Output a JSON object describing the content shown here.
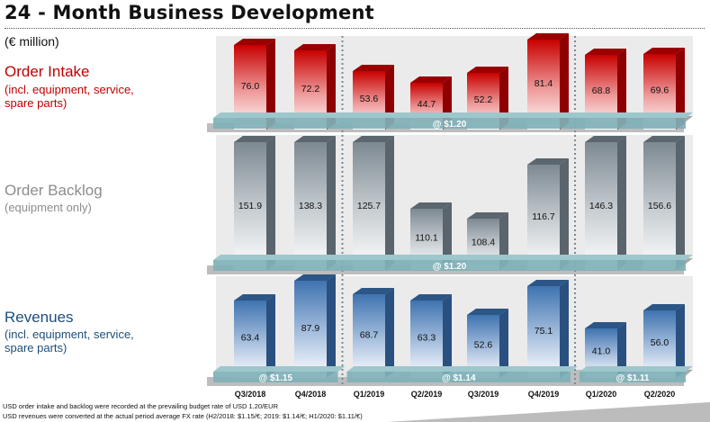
{
  "page": {
    "title": "24 - Month Business Development",
    "unit": "(€ million)",
    "footnote_1": "USD order intake and backlog were recorded at the prevailing budget rate of USD 1.20/EUR",
    "footnote_2": "USD revenues were converted at the actual period average FX rate (H2/2018: $1.15/€; 2019: $1.14/€; H1/2020: $1.11/€)"
  },
  "panels": {
    "order_intake": {
      "heading": "Order Intake",
      "subheading": "(incl. equipment, service, spare parts)",
      "color": "#c00000"
    },
    "order_backlog": {
      "heading": "Order Backlog",
      "subheading": "(equipment only)",
      "color": "#8c8c8c"
    },
    "revenues": {
      "heading": "Revenues",
      "subheading": "(incl. equipment, service, spare parts)",
      "color": "#1f4e79"
    }
  },
  "chart_data": {
    "type": "bar",
    "categories": [
      "Q3/2018",
      "Q4/2018",
      "Q1/2019",
      "Q2/2019",
      "Q3/2019",
      "Q4/2019",
      "Q1/2020",
      "Q2/2020"
    ],
    "series": [
      {
        "name": "Order Intake",
        "values": [
          76.0,
          72.2,
          53.6,
          44.7,
          52.2,
          81.4,
          68.8,
          69.6
        ],
        "labels": [
          "76.0",
          "72.2",
          "53.6",
          "44.7",
          "52.2",
          "81.4",
          "68.8",
          "69.6"
        ],
        "color": "#d40000",
        "fx_bands": [
          {
            "label": "@ $1.20",
            "from": 0,
            "to": 7
          }
        ]
      },
      {
        "name": "Order Backlog",
        "values": [
          151.9,
          138.3,
          125.7,
          110.1,
          108.4,
          116.7,
          146.3,
          156.6
        ],
        "labels": [
          "151.9",
          "138.3",
          "125.7",
          "110.1",
          "108.4",
          "116.7",
          "146.3",
          "156.6"
        ],
        "color": "#7f8c96",
        "fx_bands": [
          {
            "label": "@ $1.20",
            "from": 0,
            "to": 7
          }
        ]
      },
      {
        "name": "Revenues",
        "values": [
          63.4,
          87.9,
          68.7,
          63.3,
          52.6,
          75.1,
          41.0,
          56.0
        ],
        "labels": [
          "63.4",
          "87.9",
          "68.7",
          "63.3",
          "52.6",
          "75.1",
          "41.0",
          "56.0"
        ],
        "color": "#4a7db8",
        "fx_bands": [
          {
            "label": "@ $1.15",
            "from": 0,
            "to": 1
          },
          {
            "label": "@ $1.14",
            "from": 2,
            "to": 5
          },
          {
            "label": "@ $1.11",
            "from": 6,
            "to": 7
          }
        ]
      }
    ],
    "year_separators_after": [
      1,
      5
    ]
  }
}
